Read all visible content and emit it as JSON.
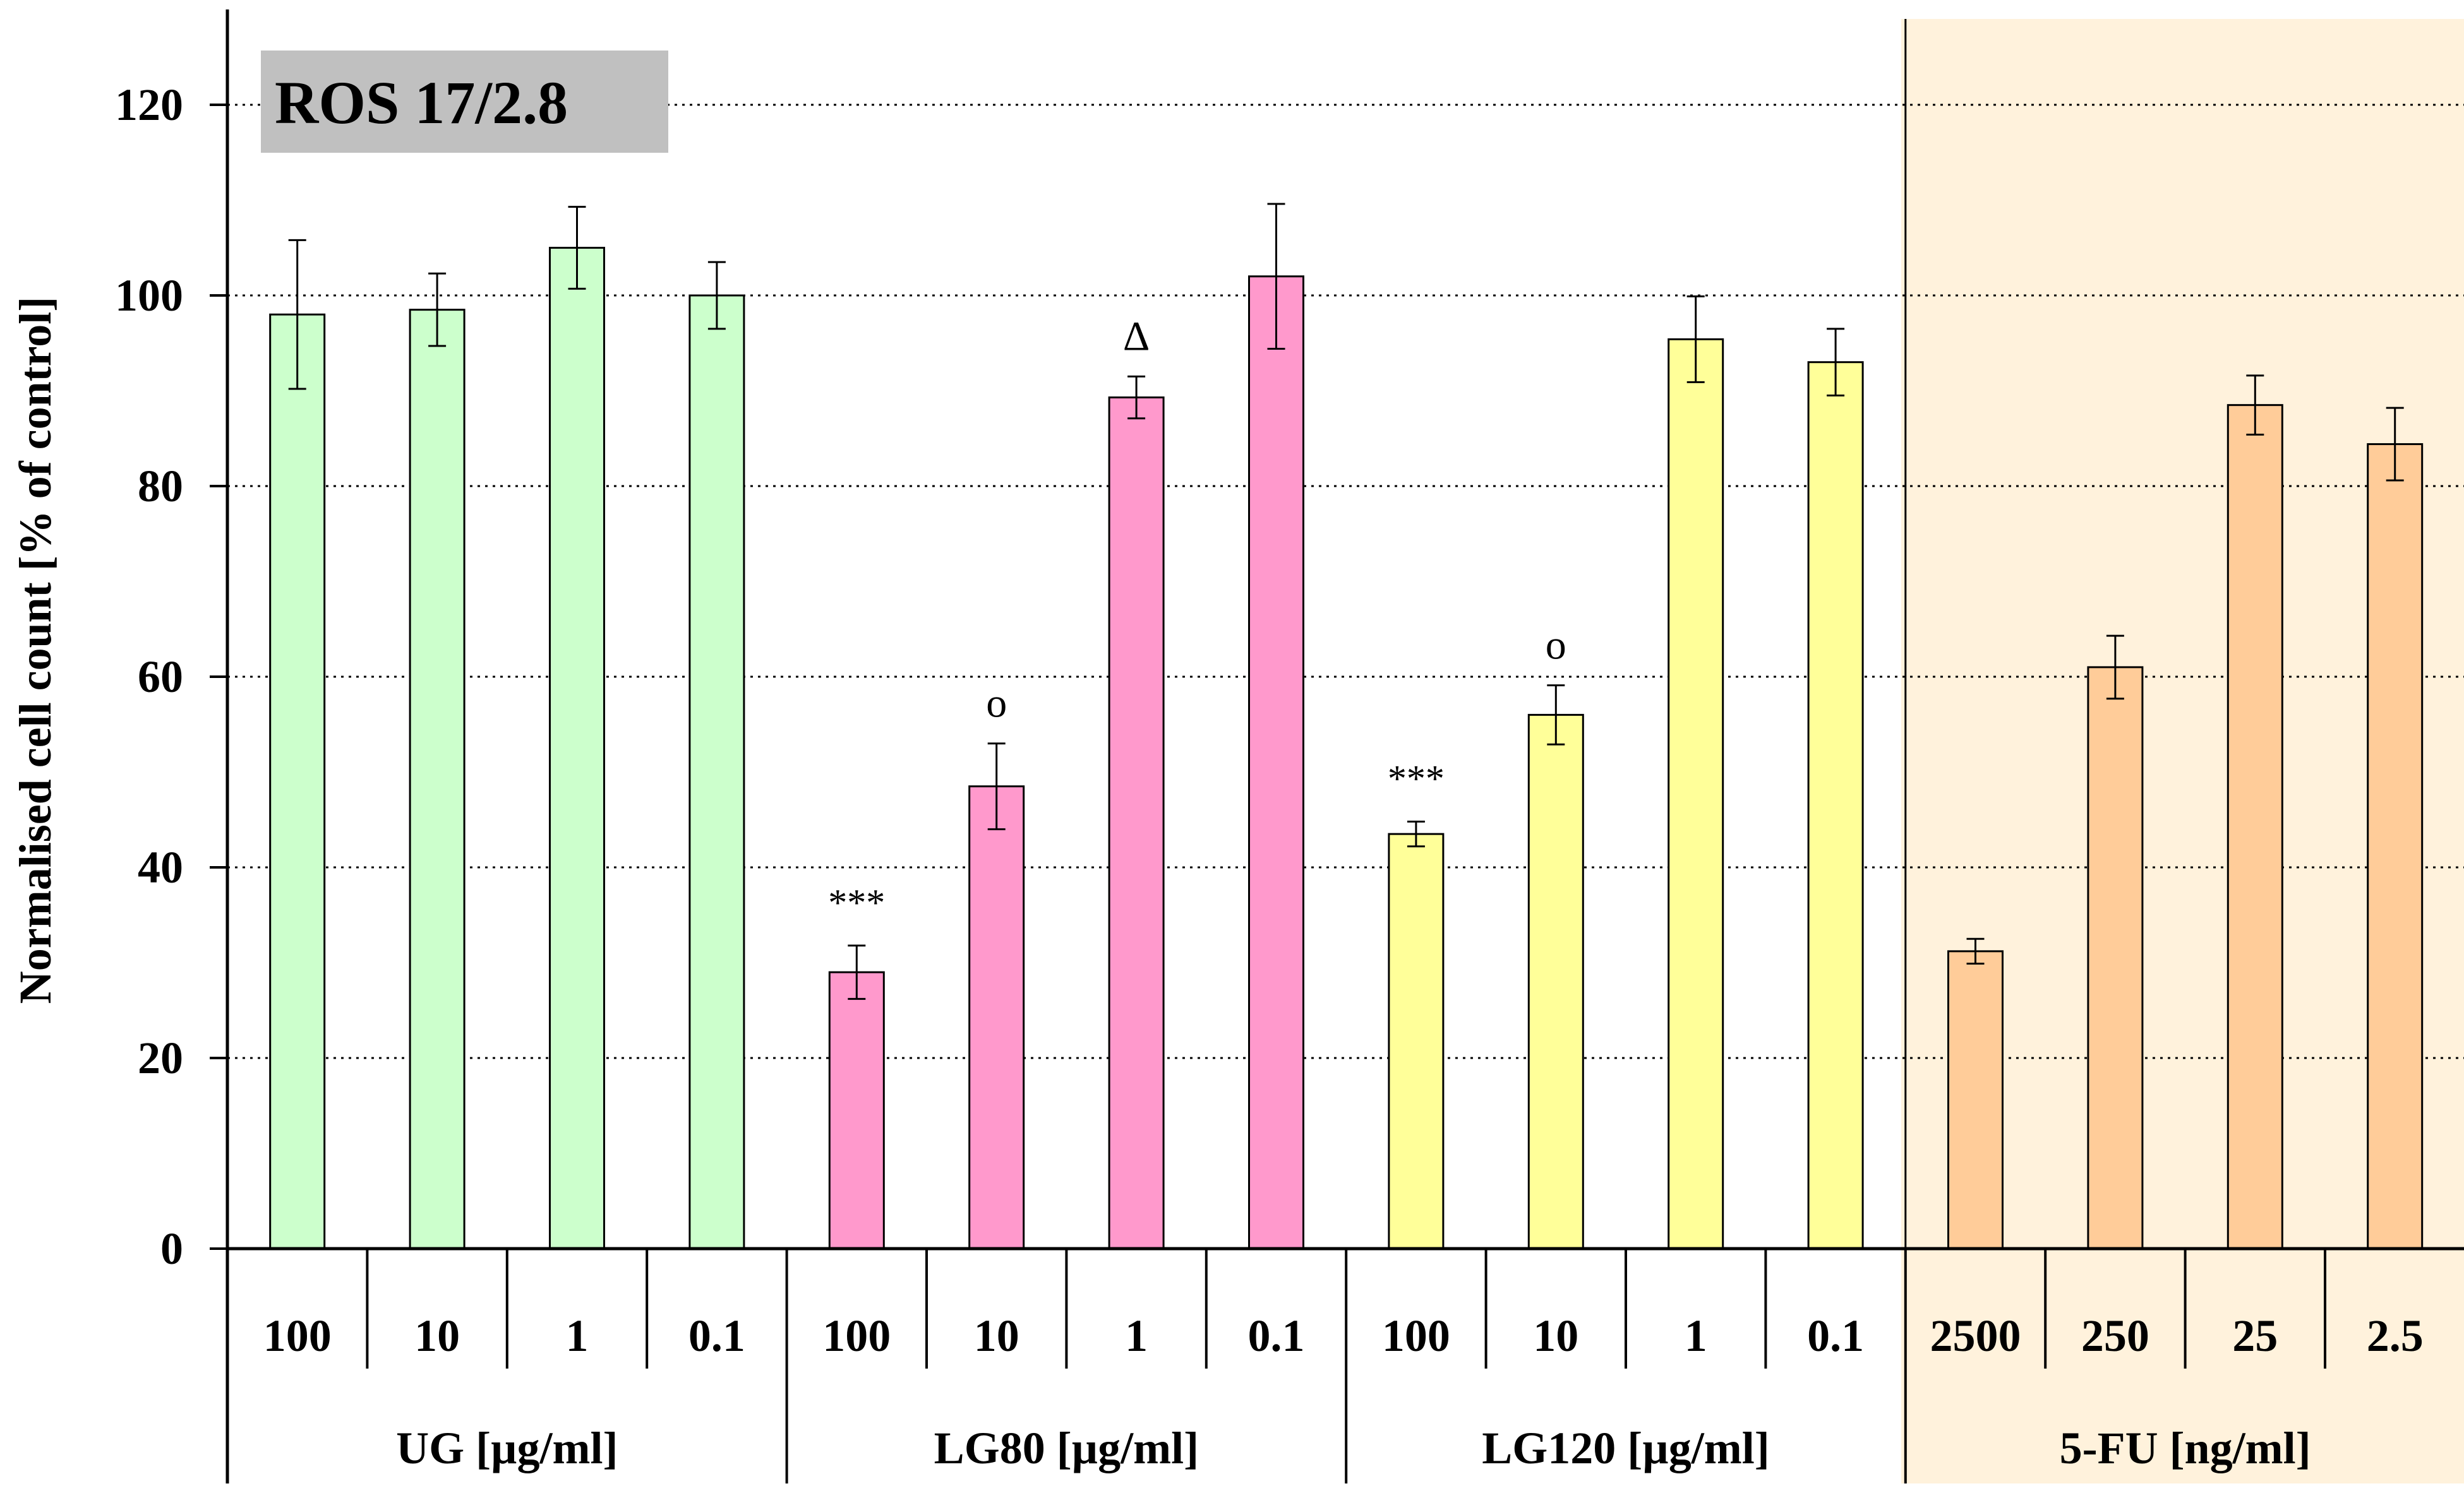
{
  "chart_data": {
    "type": "bar",
    "title": "ROS 17/2.8",
    "ylabel": "Normalised cell count [% of control]",
    "xlabel": "",
    "ylim": [
      0,
      130
    ],
    "yticks": [
      0,
      20,
      40,
      60,
      80,
      100,
      120
    ],
    "grid": "dotted horizontal",
    "highlighted_group": "5-FU [ng/ml]",
    "groups": [
      {
        "name": "UG [µg/ml]",
        "color": "#ccffcc",
        "categories": [
          "100",
          "10",
          "1",
          "0.1"
        ],
        "values": [
          98,
          98.5,
          105,
          100
        ],
        "errors": [
          7.8,
          3.8,
          4.3,
          3.5
        ],
        "annotations": [
          "",
          "",
          "",
          ""
        ]
      },
      {
        "name": "LG80 [µg/ml]",
        "color": "#ff99cc",
        "categories": [
          "100",
          "10",
          "1",
          "0.1"
        ],
        "values": [
          29,
          48.5,
          89.3,
          102
        ],
        "errors": [
          2.8,
          4.5,
          2.2,
          7.6
        ],
        "annotations": [
          "***",
          "o",
          "Δ",
          ""
        ]
      },
      {
        "name": "LG120 [µg/ml]",
        "color": "#ffff99",
        "categories": [
          "100",
          "10",
          "1",
          "0.1"
        ],
        "values": [
          43.5,
          56,
          95.4,
          93
        ],
        "errors": [
          1.3,
          3.1,
          4.5,
          3.5
        ],
        "annotations": [
          "***",
          "o",
          "",
          ""
        ]
      },
      {
        "name": "5-FU [ng/ml]",
        "color": "#ffcc99",
        "categories": [
          "2500",
          "250",
          "25",
          "2.5"
        ],
        "values": [
          31.2,
          61,
          88.5,
          84.4
        ],
        "errors": [
          1.3,
          3.3,
          3.1,
          3.8
        ],
        "annotations": [
          "",
          "",
          "",
          ""
        ]
      }
    ]
  },
  "colors": {
    "highlight_background": "#fff2dc",
    "badge_background": "#c0c0c0",
    "axis": "#000000"
  }
}
